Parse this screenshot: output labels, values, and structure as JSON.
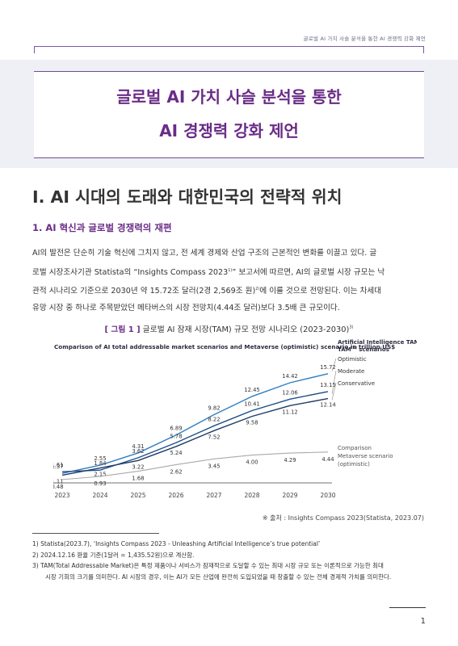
{
  "running_header": "글로벌 AI 가치 사슬 분석을 통한 AI 경쟁력 강화 제언",
  "title": {
    "line1": "글로벌 AI 가치 사슬 분석을 통한",
    "line2": "AI 경쟁력 강화 제언"
  },
  "chapter": "Ⅰ. AI 시대의 도래와 대한민국의 전략적 위치",
  "section": "1. AI 혁신과 글로벌 경쟁력의 재편",
  "paragraph": {
    "l1": "AI의 발전은 단순히 기술 혁신에 그치지 않고, 전 세계 경제와 산업 구조의 근본적인 변화를 이끌고 있다. 글",
    "l2a": "로벌 시장조사기관 Statista의 “Insights Compass 2023",
    "l2sup": "1)",
    "l2b": "” 보고서에 따르면, AI의 글로벌 시장 규모는 낙",
    "l3a": "관적 시나리오 기준으로 2030년 약 15.72조 달러(2경 2,569조 원)",
    "l3sup": "2)",
    "l3b": "에 이를 것으로 전망된다. 이는 차세대",
    "l4": "유망 시장 중 하나로 주목받았던 메타버스의 시장 전망치(4.44조 달러)보다 3.5배 큰 규모이다."
  },
  "figure": {
    "number": "[ 그림 1 ]",
    "caption": "글로벌 AI 잠재 시장(TAM) 규모 전망 시나리오 (2023-2030)",
    "caption_sup": "3)"
  },
  "chart_data": {
    "type": "line",
    "title": "Comparison of AI total addressable market scenarios and Metaverse (optimistic) scenario in trillion US$",
    "x": [
      "2023",
      "2024",
      "2025",
      "2026",
      "2027",
      "2028",
      "2029",
      "2030"
    ],
    "legend_title": "Artificial Intelligence TAM",
    "legend_title_sup": "(1)",
    "legend_title_suffix": "scenarios",
    "series": [
      {
        "name": "Optimistic",
        "color": "#2f7fc1",
        "values": [
          1.37,
          2.55,
          4.31,
          6.89,
          9.82,
          12.45,
          14.42,
          15.72
        ]
      },
      {
        "name": "Moderate",
        "color": "#1e4f8a",
        "values": [
          1.61,
          1.84,
          3.62,
          5.78,
          8.22,
          10.41,
          12.06,
          13.15
        ]
      },
      {
        "name": "Conservative",
        "color": "#1f3c66",
        "values": [
          1.11,
          2.15,
          3.22,
          5.24,
          7.52,
          9.58,
          11.12,
          12.14
        ]
      },
      {
        "name": "Comparison Metaverse scenario (optimistic)",
        "color": "#a9a9a9",
        "values": [
          0.48,
          0.93,
          1.68,
          2.62,
          3.45,
          4.0,
          4.29,
          4.44
        ]
      }
    ],
    "ylim": [
      0,
      16
    ],
    "grid": false,
    "legend_placement": "right"
  },
  "source": "※ 출처 : Insights Compass 2023(Statista, 2023.07)",
  "footnotes": {
    "f1": "1)  Statista(2023.7), ‘Insights Compass 2023 - Unleashing Artificial Intelligence’s true potential’",
    "f2": "2)  2024.12.16 환율 기준(1달러 = 1,435.52원)으로 계산함.",
    "f3a": "3)  TAM(Total Addressable Market)은 특정 제품이나 서비스가 잠재적으로 도달할 수 있는 최대 시장 규모 또는 이론적으로 가능한 최대",
    "f3b": "시장 기회의 크기를 의미한다. AI 시장의 경우, 이는 AI가 모든 산업에 완전히 도입되었을 때 창출할 수 있는 전체 경제적 가치를 의미한다."
  },
  "page_number": "1"
}
